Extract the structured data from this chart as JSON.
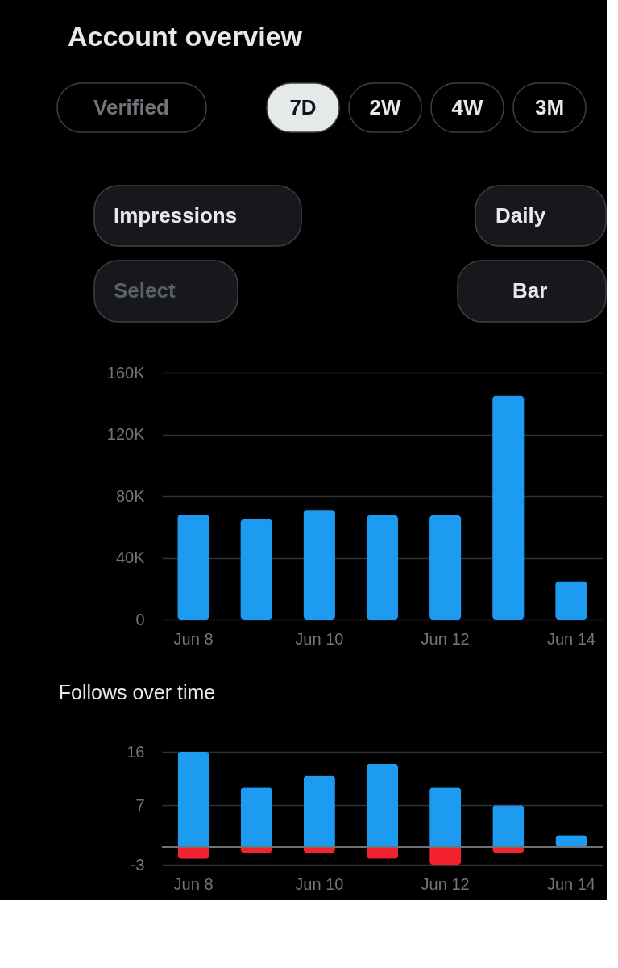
{
  "chart_data": [
    {
      "type": "bar",
      "title": "Account overview",
      "annotations": [
        "Verified",
        "7D",
        "2W",
        "4W",
        "3M",
        "Impressions",
        "Daily",
        "Select",
        "Bar"
      ],
      "categories": [
        "Jun 8",
        null,
        "Jun 10",
        null,
        "Jun 12",
        null,
        "Jun 14"
      ],
      "values": [
        68000,
        65000,
        71000,
        67400,
        67400,
        145000,
        24700
      ],
      "color": "#1d9bf0",
      "ylim": [
        0,
        160000
      ],
      "yticks": [
        {
          "value": 0,
          "label": "0"
        },
        {
          "value": 40000,
          "label": "40K"
        },
        {
          "value": 80000,
          "label": "80K"
        },
        {
          "value": 120000,
          "label": "120K"
        },
        {
          "value": 160000,
          "label": "160K"
        }
      ],
      "grid": "y"
    },
    {
      "type": "bar",
      "title": "Follows over time",
      "stacked": true,
      "categories": [
        "Jun 8",
        null,
        "Jun 10",
        null,
        "Jun 12",
        null,
        "Jun 14"
      ],
      "series": [
        {
          "color": "#1d9bf0",
          "values": [
            16,
            10,
            12,
            14,
            10,
            7,
            2
          ]
        },
        {
          "color": "#f4212e",
          "values": [
            -2,
            -1,
            -1,
            -2,
            -3,
            -1,
            null
          ]
        }
      ],
      "ylim": [
        -3,
        16
      ],
      "yticks": [
        -3,
        7,
        16
      ],
      "grid": "y",
      "ref_lines": [
        {
          "axis": "y",
          "value": 0,
          "color": "#6e7378"
        }
      ]
    }
  ]
}
